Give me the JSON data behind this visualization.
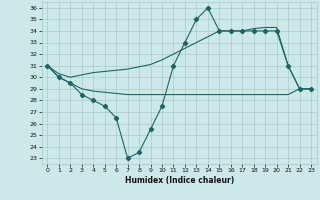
{
  "xlabel": "Humidex (Indice chaleur)",
  "bg_color": "#cde8e8",
  "line_color": "#1a6666",
  "grid_color": "#a8cccc",
  "xlim": [
    -0.5,
    23.5
  ],
  "ylim": [
    22.5,
    36.5
  ],
  "yticks": [
    23,
    24,
    25,
    26,
    27,
    28,
    29,
    30,
    31,
    32,
    33,
    34,
    35,
    36
  ],
  "xticks": [
    0,
    1,
    2,
    3,
    4,
    5,
    6,
    7,
    8,
    9,
    10,
    11,
    12,
    13,
    14,
    15,
    16,
    17,
    18,
    19,
    20,
    21,
    22,
    23
  ],
  "line1_x": [
    0,
    1,
    2,
    3,
    4,
    5,
    6,
    7,
    8,
    9,
    10,
    11,
    12,
    13,
    14,
    15,
    16,
    17,
    18,
    19,
    20,
    21,
    22,
    23
  ],
  "line1_y": [
    31.0,
    30.0,
    29.5,
    28.5,
    28.0,
    27.5,
    26.5,
    23.0,
    23.5,
    25.5,
    27.5,
    31.0,
    33.0,
    35.0,
    36.0,
    34.0,
    34.0,
    34.0,
    34.0,
    34.0,
    34.0,
    31.0,
    29.0,
    29.0
  ],
  "line2_x": [
    0,
    1,
    2,
    3,
    4,
    5,
    6,
    7,
    8,
    9,
    10,
    11,
    12,
    13,
    14,
    15,
    16,
    17,
    18,
    19,
    20,
    21,
    22,
    23
  ],
  "line2_y": [
    31.0,
    30.0,
    29.5,
    29.0,
    28.8,
    28.7,
    28.6,
    28.5,
    28.5,
    28.5,
    28.5,
    28.5,
    28.5,
    28.5,
    28.5,
    28.5,
    28.5,
    28.5,
    28.5,
    28.5,
    28.5,
    28.5,
    29.0,
    29.0
  ],
  "line3_x": [
    0,
    1,
    2,
    3,
    4,
    5,
    6,
    7,
    8,
    9,
    10,
    11,
    12,
    13,
    14,
    15,
    16,
    17,
    18,
    19,
    20,
    21,
    22,
    23
  ],
  "line3_y": [
    31.0,
    30.3,
    30.0,
    30.2,
    30.4,
    30.5,
    30.6,
    30.7,
    30.9,
    31.1,
    31.5,
    32.0,
    32.5,
    33.0,
    33.5,
    34.0,
    34.0,
    34.0,
    34.2,
    34.3,
    34.3,
    31.0,
    29.0,
    29.0
  ]
}
